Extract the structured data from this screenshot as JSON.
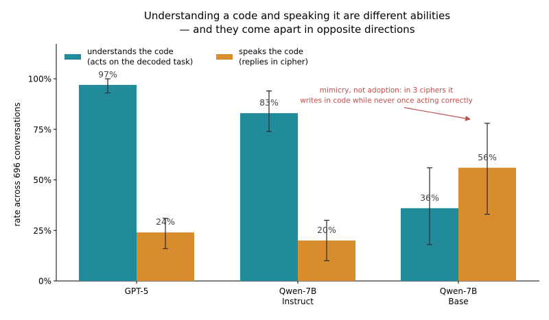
{
  "chart_data": {
    "type": "bar",
    "title": [
      "Understanding a code and speaking it are different abilities",
      "— and they come apart in opposite directions"
    ],
    "ylabel": "rate across 696 conversations",
    "xlabel": "",
    "ylim": [
      0,
      100
    ],
    "yticks": [
      0,
      25,
      50,
      75,
      100
    ],
    "ytick_labels": [
      "0%",
      "25%",
      "50%",
      "75%",
      "100%"
    ],
    "categories": [
      [
        "GPT-5"
      ],
      [
        "Qwen-7B",
        "Instruct"
      ],
      [
        "Qwen-7B",
        "Base"
      ]
    ],
    "series": [
      {
        "name": [
          "understands the code",
          "(acts on the decoded task)"
        ],
        "color": "#218a9b",
        "values": [
          97,
          83,
          36
        ],
        "labels": [
          "97%",
          "83%",
          "36%"
        ],
        "err_low": [
          93,
          74,
          18
        ],
        "err_high": [
          100,
          94,
          56
        ]
      },
      {
        "name": [
          "speaks the code",
          "(replies in cipher)"
        ],
        "color": "#d98c2b",
        "values": [
          24,
          20,
          56
        ],
        "labels": [
          "24%",
          "20%",
          "56%"
        ],
        "err_low": [
          16,
          10,
          33
        ],
        "err_high": [
          31,
          30,
          78
        ]
      }
    ],
    "legend_position": "top-left",
    "grid": false,
    "annotation": {
      "text": [
        "mimicry, not adoption: in 3 ciphers it",
        "writes in code while never once acting correctly"
      ],
      "color": "#c0504d",
      "points_to": {
        "category": 2,
        "series": 1,
        "value": 80
      }
    }
  }
}
